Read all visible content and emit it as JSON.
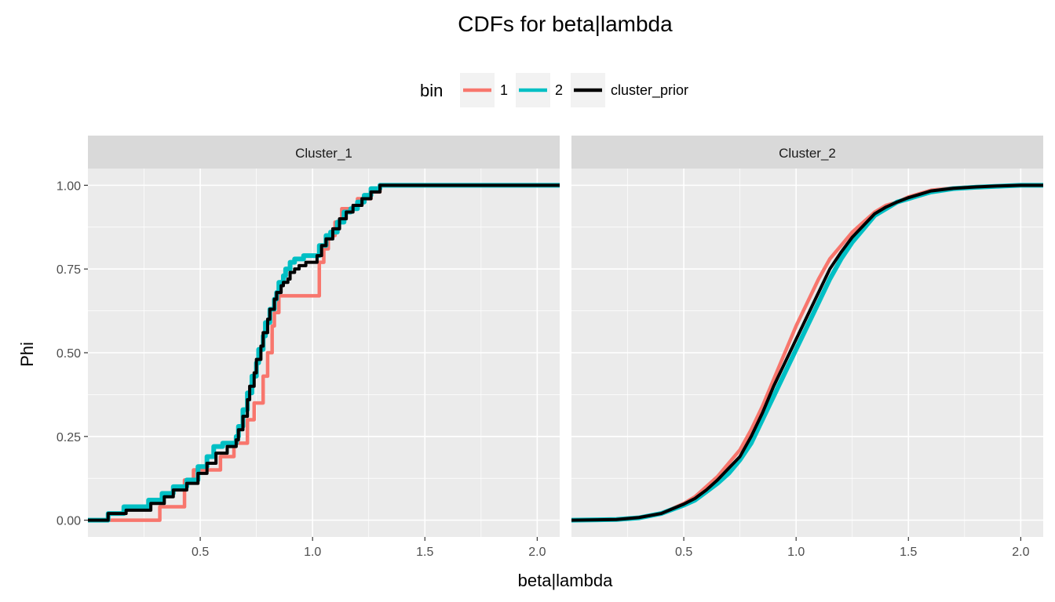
{
  "chart_data": {
    "type": "line",
    "title": "CDFs for  beta|lambda",
    "xlabel": "beta|lambda",
    "ylabel": "Phi",
    "xlim": [
      0.0,
      2.1
    ],
    "ylim": [
      -0.05,
      1.05
    ],
    "x_ticks": [
      0.5,
      1.0,
      1.5,
      2.0
    ],
    "x_tick_labels": [
      "0.5",
      "1.0",
      "1.5",
      "2.0"
    ],
    "y_ticks": [
      0.0,
      0.25,
      0.5,
      0.75,
      1.0
    ],
    "y_tick_labels": [
      "0.00",
      "0.25",
      "0.50",
      "0.75",
      "1.00"
    ],
    "grid": true,
    "legend": {
      "title": "bin",
      "position": "top",
      "entries": [
        {
          "label": "1",
          "color": "#F8766D"
        },
        {
          "label": "2",
          "color": "#00BFC4"
        },
        {
          "label": "cluster_prior",
          "color": "#000000"
        }
      ]
    },
    "panels": [
      {
        "strip": "Cluster_1",
        "step": true,
        "series": [
          {
            "name": "1",
            "color": "#F8766D",
            "x": [
              0.0,
              0.32,
              0.43,
              0.47,
              0.59,
              0.65,
              0.71,
              0.74,
              0.78,
              0.8,
              0.82,
              0.83,
              0.85,
              1.03,
              1.05,
              1.07,
              1.1,
              1.13,
              1.2,
              1.26,
              1.3
            ],
            "y": [
              0.0,
              0.04,
              0.12,
              0.15,
              0.19,
              0.23,
              0.3,
              0.35,
              0.43,
              0.5,
              0.58,
              0.62,
              0.67,
              0.77,
              0.81,
              0.85,
              0.89,
              0.93,
              0.96,
              0.98,
              1.0
            ]
          },
          {
            "name": "2",
            "color": "#00BFC4",
            "x": [
              0.0,
              0.09,
              0.16,
              0.27,
              0.33,
              0.38,
              0.44,
              0.49,
              0.53,
              0.56,
              0.6,
              0.66,
              0.67,
              0.69,
              0.71,
              0.73,
              0.75,
              0.76,
              0.78,
              0.79,
              0.81,
              0.83,
              0.84,
              0.85,
              0.87,
              0.88,
              0.9,
              0.92,
              0.94,
              0.96,
              1.0,
              1.03,
              1.06,
              1.08,
              1.11,
              1.14,
              1.17,
              1.2,
              1.23,
              1.26,
              1.3
            ],
            "y": [
              0.0,
              0.02,
              0.04,
              0.06,
              0.08,
              0.1,
              0.12,
              0.16,
              0.19,
              0.22,
              0.23,
              0.25,
              0.28,
              0.33,
              0.38,
              0.43,
              0.47,
              0.51,
              0.55,
              0.59,
              0.63,
              0.66,
              0.68,
              0.71,
              0.73,
              0.75,
              0.77,
              0.78,
              0.78,
              0.79,
              0.79,
              0.82,
              0.85,
              0.86,
              0.89,
              0.92,
              0.93,
              0.95,
              0.97,
              0.99,
              1.0
            ]
          },
          {
            "name": "cluster_prior",
            "color": "#000000",
            "x": [
              0.0,
              0.09,
              0.17,
              0.28,
              0.34,
              0.38,
              0.44,
              0.49,
              0.53,
              0.57,
              0.62,
              0.66,
              0.67,
              0.69,
              0.71,
              0.72,
              0.74,
              0.75,
              0.77,
              0.78,
              0.8,
              0.81,
              0.83,
              0.84,
              0.86,
              0.87,
              0.89,
              0.9,
              0.92,
              0.94,
              0.97,
              1.02,
              1.04,
              1.06,
              1.09,
              1.12,
              1.15,
              1.18,
              1.22,
              1.26,
              1.3
            ],
            "y": [
              0.0,
              0.02,
              0.03,
              0.05,
              0.07,
              0.09,
              0.11,
              0.14,
              0.17,
              0.2,
              0.22,
              0.24,
              0.27,
              0.31,
              0.36,
              0.4,
              0.44,
              0.48,
              0.52,
              0.56,
              0.6,
              0.63,
              0.66,
              0.68,
              0.7,
              0.71,
              0.72,
              0.74,
              0.75,
              0.76,
              0.77,
              0.79,
              0.82,
              0.84,
              0.87,
              0.9,
              0.92,
              0.94,
              0.96,
              0.98,
              1.0
            ]
          }
        ]
      },
      {
        "strip": "Cluster_2",
        "step": false,
        "series": [
          {
            "name": "1",
            "color": "#F8766D",
            "x": [
              0.0,
              0.2,
              0.3,
              0.4,
              0.5,
              0.55,
              0.6,
              0.65,
              0.7,
              0.75,
              0.8,
              0.85,
              0.9,
              0.95,
              1.0,
              1.05,
              1.1,
              1.15,
              1.2,
              1.25,
              1.3,
              1.35,
              1.4,
              1.45,
              1.5,
              1.55,
              1.6,
              1.7,
              1.8,
              1.9,
              2.0,
              2.1
            ],
            "y": [
              0.0,
              0.002,
              0.008,
              0.02,
              0.05,
              0.07,
              0.1,
              0.13,
              0.17,
              0.21,
              0.27,
              0.34,
              0.42,
              0.5,
              0.58,
              0.65,
              0.72,
              0.78,
              0.82,
              0.86,
              0.89,
              0.92,
              0.94,
              0.95,
              0.965,
              0.975,
              0.985,
              0.992,
              0.996,
              0.998,
              1.0,
              1.0
            ]
          },
          {
            "name": "2",
            "color": "#00BFC4",
            "x": [
              0.0,
              0.2,
              0.3,
              0.4,
              0.5,
              0.55,
              0.6,
              0.65,
              0.7,
              0.75,
              0.8,
              0.85,
              0.9,
              0.95,
              1.0,
              1.05,
              1.1,
              1.15,
              1.2,
              1.25,
              1.3,
              1.35,
              1.4,
              1.45,
              1.5,
              1.55,
              1.6,
              1.7,
              1.8,
              1.9,
              2.0,
              2.1
            ],
            "y": [
              0.0,
              0.002,
              0.007,
              0.02,
              0.045,
              0.06,
              0.085,
              0.11,
              0.14,
              0.18,
              0.23,
              0.3,
              0.37,
              0.44,
              0.51,
              0.58,
              0.65,
              0.72,
              0.78,
              0.83,
              0.87,
              0.91,
              0.93,
              0.95,
              0.96,
              0.97,
              0.98,
              0.99,
              0.994,
              0.997,
              1.0,
              1.0
            ]
          },
          {
            "name": "cluster_prior",
            "color": "#000000",
            "x": [
              0.0,
              0.2,
              0.3,
              0.4,
              0.5,
              0.55,
              0.6,
              0.65,
              0.7,
              0.75,
              0.8,
              0.85,
              0.9,
              0.95,
              1.0,
              1.05,
              1.1,
              1.15,
              1.2,
              1.25,
              1.3,
              1.35,
              1.4,
              1.45,
              1.5,
              1.55,
              1.6,
              1.7,
              1.8,
              1.9,
              2.0,
              2.1
            ],
            "y": [
              0.0,
              0.002,
              0.008,
              0.02,
              0.048,
              0.065,
              0.09,
              0.12,
              0.155,
              0.19,
              0.25,
              0.32,
              0.4,
              0.47,
              0.54,
              0.61,
              0.68,
              0.75,
              0.8,
              0.845,
              0.88,
              0.915,
              0.935,
              0.95,
              0.963,
              0.973,
              0.983,
              0.991,
              0.995,
              0.998,
              1.0,
              1.0
            ]
          }
        ]
      }
    ]
  }
}
